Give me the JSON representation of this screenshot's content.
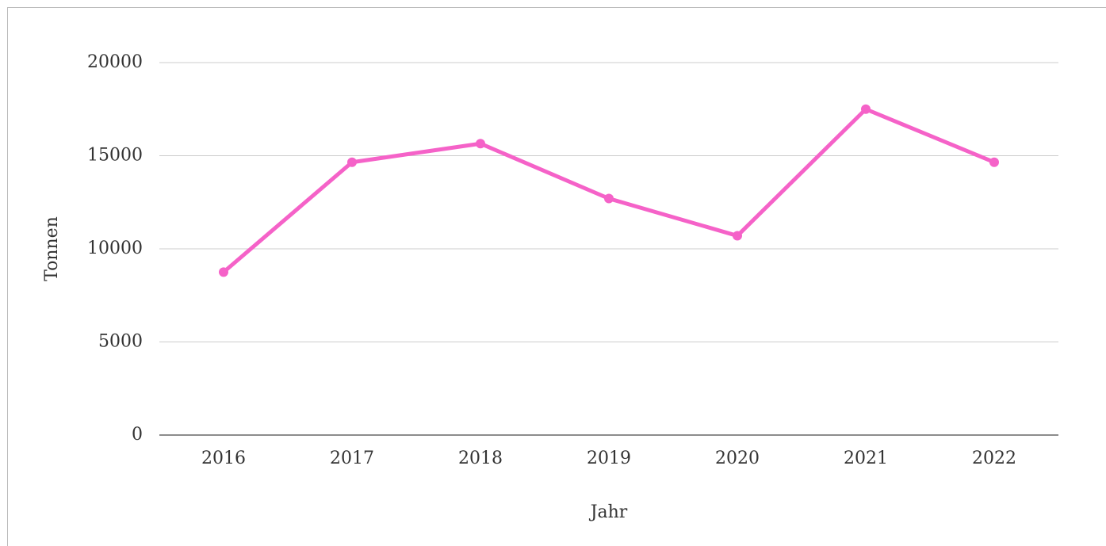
{
  "chart_data": {
    "type": "line",
    "x_label": "Jahr",
    "y_label": "Tonnen",
    "categories": [
      "2016",
      "2017",
      "2018",
      "2019",
      "2020",
      "2021",
      "2022"
    ],
    "series": [
      {
        "name": "Tonnen",
        "color": "#f562c8",
        "values": [
          8750,
          14650,
          15650,
          12700,
          10700,
          17500,
          14650
        ]
      }
    ],
    "ylim": [
      0,
      20000
    ],
    "yticks": [
      0,
      5000,
      10000,
      15000,
      20000
    ],
    "grid": true,
    "legend": false
  }
}
